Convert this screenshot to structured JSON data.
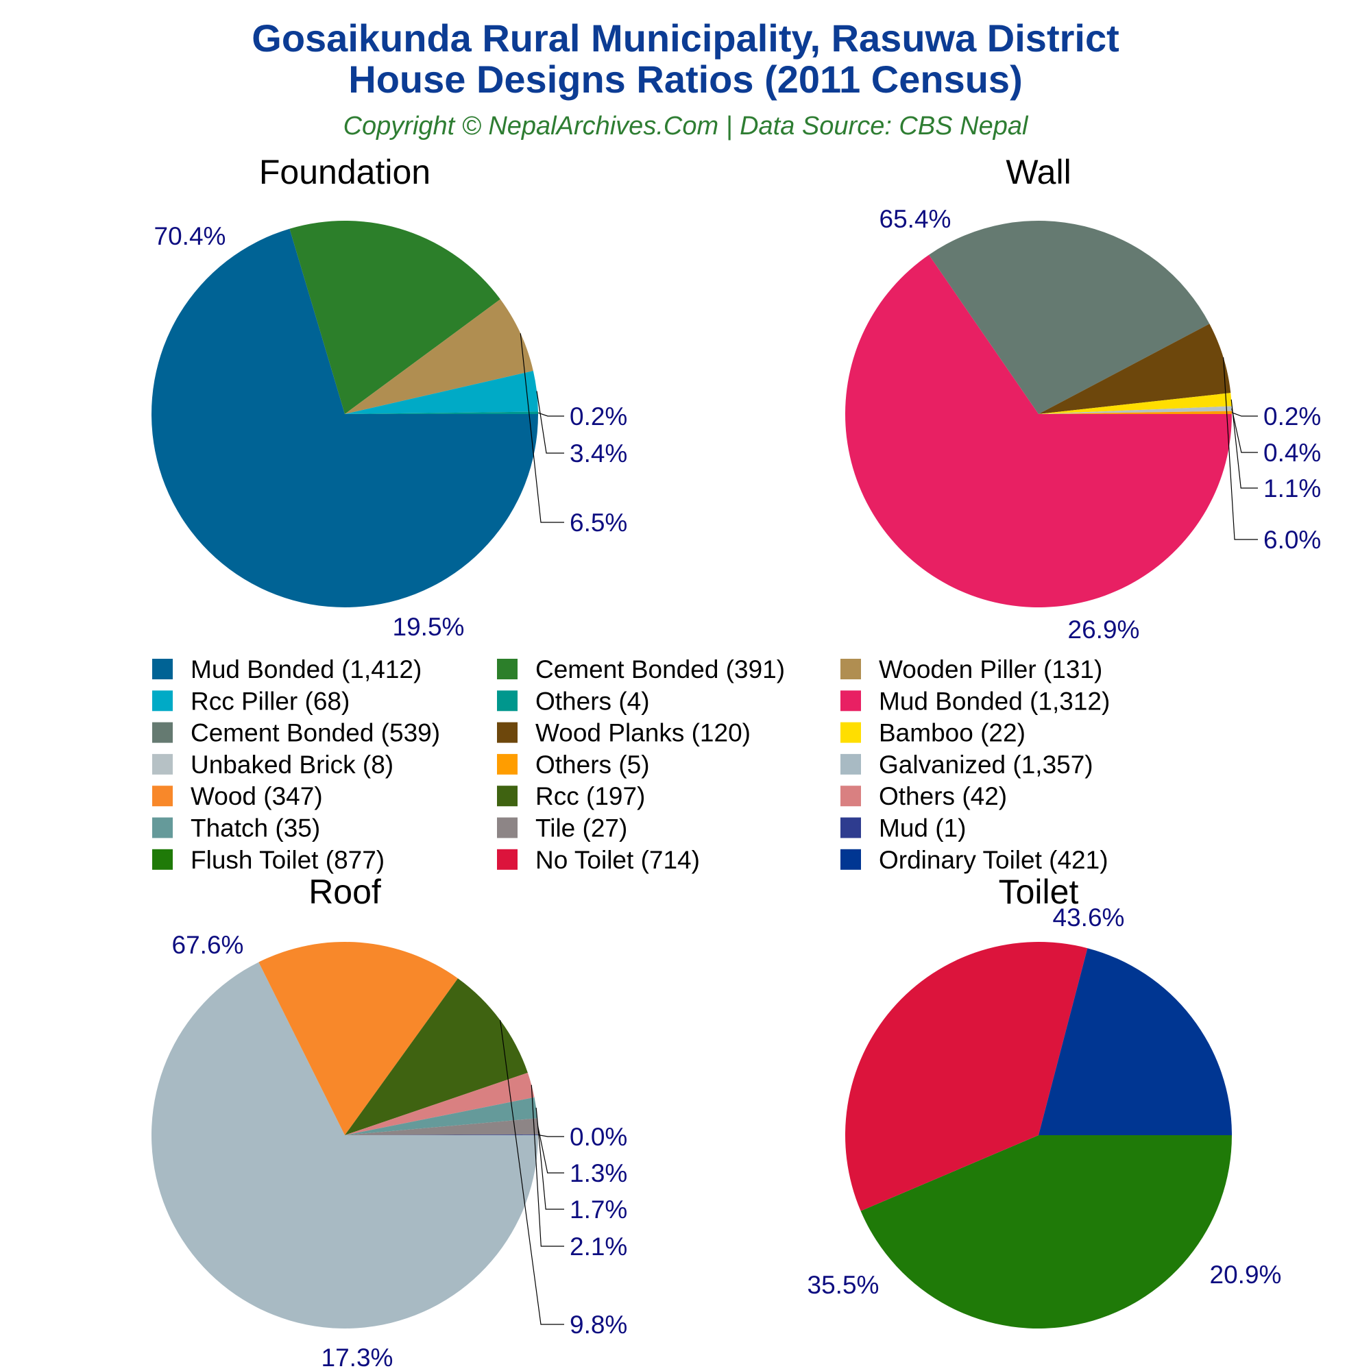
{
  "header": {
    "title_line1": "Gosaikunda Rural Municipality, Rasuwa District",
    "title_line2": "House Designs Ratios (2011 Census)",
    "subtitle": "Copyright © NepalArchives.Com | Data Source: CBS Nepal"
  },
  "chart_data": [
    {
      "type": "pie",
      "title": "Foundation",
      "slices": [
        {
          "label": "Mud Bonded (1,412)",
          "value": 1412,
          "percent": "70.4%",
          "color": "#006395"
        },
        {
          "label": "Cement Bonded (391)",
          "value": 391,
          "percent": "19.5%",
          "color": "#2c7f2a"
        },
        {
          "label": "Wooden Piller (131)",
          "value": 131,
          "percent": "6.5%",
          "color": "#b08e51"
        },
        {
          "label": "Rcc Piller (68)",
          "value": 68,
          "percent": "3.4%",
          "color": "#00aac6"
        },
        {
          "label": "Others (4)",
          "value": 4,
          "percent": "0.2%",
          "color": "#00978d"
        }
      ]
    },
    {
      "type": "pie",
      "title": "Wall",
      "slices": [
        {
          "label": "Mud Bonded (1,312)",
          "value": 1312,
          "percent": "65.4%",
          "color": "#e82063"
        },
        {
          "label": "Cement Bonded (539)",
          "value": 539,
          "percent": "26.9%",
          "color": "#657a71"
        },
        {
          "label": "Wood Planks (120)",
          "value": 120,
          "percent": "6.0%",
          "color": "#6d470c"
        },
        {
          "label": "Bamboo (22)",
          "value": 22,
          "percent": "1.1%",
          "color": "#ffde00"
        },
        {
          "label": "Unbaked Brick (8)",
          "value": 8,
          "percent": "0.4%",
          "color": "#b6c1c5"
        },
        {
          "label": "Others (5)",
          "value": 5,
          "percent": "0.2%",
          "color": "#ff9d00"
        }
      ]
    },
    {
      "type": "pie",
      "title": "Roof",
      "slices": [
        {
          "label": "Galvanized (1,357)",
          "value": 1357,
          "percent": "67.6%",
          "color": "#a8bac3"
        },
        {
          "label": "Wood (347)",
          "value": 347,
          "percent": "17.3%",
          "color": "#f8882a"
        },
        {
          "label": "Rcc (197)",
          "value": 197,
          "percent": "9.8%",
          "color": "#3f6311"
        },
        {
          "label": "Others (42)",
          "value": 42,
          "percent": "2.1%",
          "color": "#d98081"
        },
        {
          "label": "Thatch (35)",
          "value": 35,
          "percent": "1.7%",
          "color": "#659a9a"
        },
        {
          "label": "Tile (27)",
          "value": 27,
          "percent": "1.3%",
          "color": "#8d8586"
        },
        {
          "label": "Mud (1)",
          "value": 1,
          "percent": "0.0%",
          "color": "#2e3c8f"
        }
      ]
    },
    {
      "type": "pie",
      "title": "Toilet",
      "slices": [
        {
          "label": "Flush Toilet (877)",
          "value": 877,
          "percent": "43.6%",
          "color": "#1f7a08"
        },
        {
          "label": "No Toilet (714)",
          "value": 714,
          "percent": "35.5%",
          "color": "#dc143c"
        },
        {
          "label": "Ordinary Toilet (421)",
          "value": 421,
          "percent": "20.9%",
          "color": "#003692"
        }
      ]
    }
  ],
  "legend": [
    [
      "Mud Bonded (1,412)",
      "#006395"
    ],
    [
      "Cement Bonded (391)",
      "#2c7f2a"
    ],
    [
      "Wooden Piller (131)",
      "#b08e51"
    ],
    [
      "Rcc Piller (68)",
      "#00aac6"
    ],
    [
      "Others (4)",
      "#00978d"
    ],
    [
      "Mud Bonded (1,312)",
      "#e82063"
    ],
    [
      "Cement Bonded (539)",
      "#657a71"
    ],
    [
      "Wood Planks (120)",
      "#6d470c"
    ],
    [
      "Bamboo (22)",
      "#ffde00"
    ],
    [
      "Unbaked Brick (8)",
      "#b6c1c5"
    ],
    [
      "Others (5)",
      "#ff9d00"
    ],
    [
      "Galvanized (1,357)",
      "#a8bac3"
    ],
    [
      "Wood (347)",
      "#f8882a"
    ],
    [
      "Rcc (197)",
      "#3f6311"
    ],
    [
      "Others (42)",
      "#d98081"
    ],
    [
      "Thatch (35)",
      "#659a9a"
    ],
    [
      "Tile (27)",
      "#8d8586"
    ],
    [
      "Mud (1)",
      "#2e3c8f"
    ],
    [
      "Flush Toilet (877)",
      "#1f7a08"
    ],
    [
      "No Toilet (714)",
      "#dc143c"
    ],
    [
      "Ordinary Toilet (421)",
      "#003692"
    ]
  ]
}
